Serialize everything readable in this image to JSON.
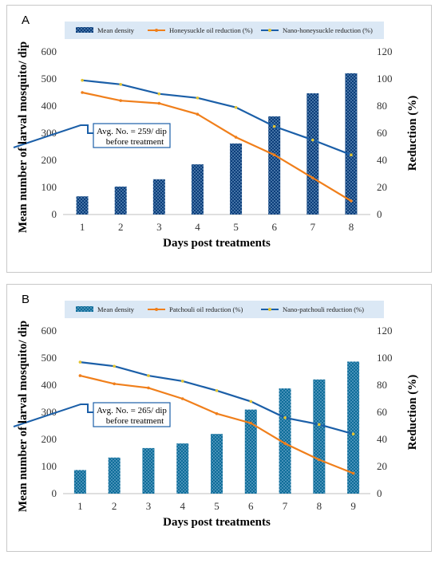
{
  "panels": [
    {
      "letter": "A",
      "chart_data": {
        "type": "bar",
        "x": [
          1,
          2,
          3,
          4,
          5,
          6,
          7,
          8
        ],
        "bar_series": {
          "name": "Mean density",
          "values": [
            67,
            103,
            130,
            185,
            262,
            362,
            447,
            521
          ],
          "color": "#0b3d7a"
        },
        "line_series": [
          {
            "name": "Honeysuckle oil reduction (%)",
            "values": [
              90,
              84,
              82,
              74,
              57,
              44,
              27,
              10
            ],
            "color": "#f07f1b"
          },
          {
            "name": "Nano-honeysuckle reduction (%)",
            "values": [
              99,
              96,
              89,
              86,
              79,
              65,
              55,
              44
            ],
            "color": "#1b5fa8"
          }
        ],
        "xlabel": "Days post treatments",
        "ylabel": "Mean number of larval mosquito/ dip",
        "y2label": "Reduction (%)",
        "ylim": [
          0,
          600
        ],
        "y_ticks": [
          0,
          100,
          200,
          300,
          400,
          500,
          600
        ],
        "y2lim": [
          0,
          120
        ],
        "y2_ticks": [
          0,
          20,
          40,
          60,
          80,
          100,
          120
        ],
        "legend_position": "top",
        "annotation": {
          "line1": "Avg. No. = 259/ dip",
          "line2": "before treatment"
        }
      }
    },
    {
      "letter": "B",
      "chart_data": {
        "type": "bar",
        "x": [
          1,
          2,
          3,
          4,
          5,
          6,
          7,
          8,
          9
        ],
        "bar_series": {
          "name": "Mean density",
          "values": [
            87,
            133,
            168,
            185,
            220,
            310,
            388,
            421,
            487
          ],
          "color": "#0e6d99"
        },
        "line_series": [
          {
            "name": "Patchouli oil reduction (%)",
            "values": [
              87,
              81,
              78,
              70,
              59,
              52,
              37,
              25,
              15
            ],
            "color": "#f07f1b"
          },
          {
            "name": "Nano-patchouli  reduction (%)",
            "values": [
              97,
              94,
              87,
              83,
              76,
              68,
              56,
              51,
              44
            ],
            "color": "#1b5fa8"
          }
        ],
        "xlabel": "Days post treatments",
        "ylabel": "Mean number of larval mosquito/ dip",
        "y2label": "Reduction (%)",
        "ylim": [
          0,
          600
        ],
        "y_ticks": [
          0,
          100,
          200,
          300,
          400,
          500,
          600
        ],
        "y2lim": [
          0,
          120
        ],
        "y2_ticks": [
          0,
          20,
          40,
          60,
          80,
          100,
          120
        ],
        "legend_position": "top",
        "annotation": {
          "line1": "Avg. No. = 265/ dip",
          "line2": "before treatment"
        }
      }
    }
  ]
}
